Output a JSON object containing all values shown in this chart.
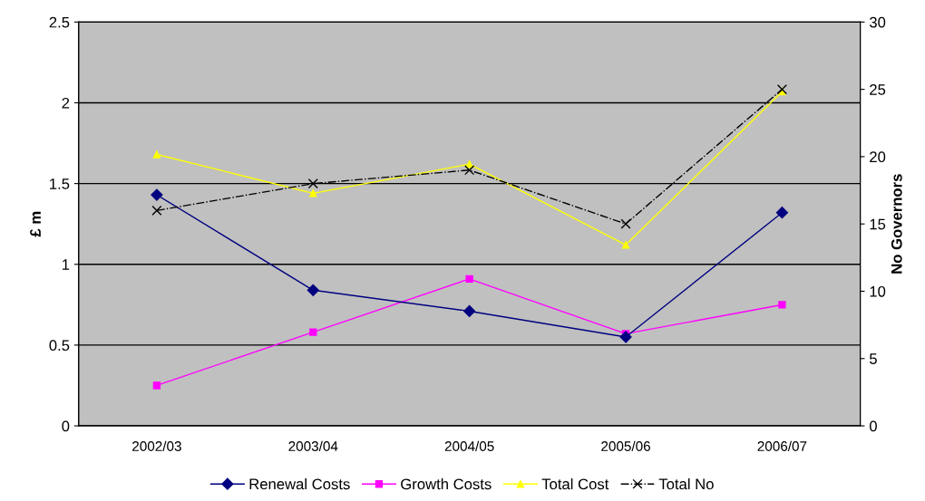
{
  "chart_data": {
    "type": "line",
    "ylabel": "£ m",
    "y2label": "No Governors",
    "categories": [
      "2002/03",
      "2003/04",
      "2004/05",
      "2005/06",
      "2006/07"
    ],
    "series": [
      {
        "name": "Renewal Costs",
        "color": "#000080",
        "marker": "diamond",
        "values": [
          1.43,
          0.84,
          0.71,
          0.55,
          1.32
        ]
      },
      {
        "name": "Growth Costs",
        "color": "#ff00ff",
        "marker": "square",
        "values": [
          0.25,
          0.58,
          0.91,
          0.57,
          0.75
        ]
      },
      {
        "name": "Total Cost",
        "color": "#ffff00",
        "marker": "triangle",
        "values": [
          1.68,
          1.44,
          1.62,
          1.12,
          2.07
        ]
      },
      {
        "name": "Total No",
        "color": "#000000",
        "marker": "cross",
        "line_style": "dashdot",
        "axis": "y2",
        "values": [
          16,
          18,
          19,
          15,
          25
        ]
      }
    ],
    "ylim": [
      0,
      2.5
    ],
    "yticks": [
      0,
      0.5,
      1,
      1.5,
      2,
      2.5
    ],
    "y2lim": [
      0,
      30
    ],
    "y2ticks": [
      0,
      5,
      10,
      15,
      20,
      25,
      30
    ],
    "grid": "y",
    "legend": "bottom"
  }
}
